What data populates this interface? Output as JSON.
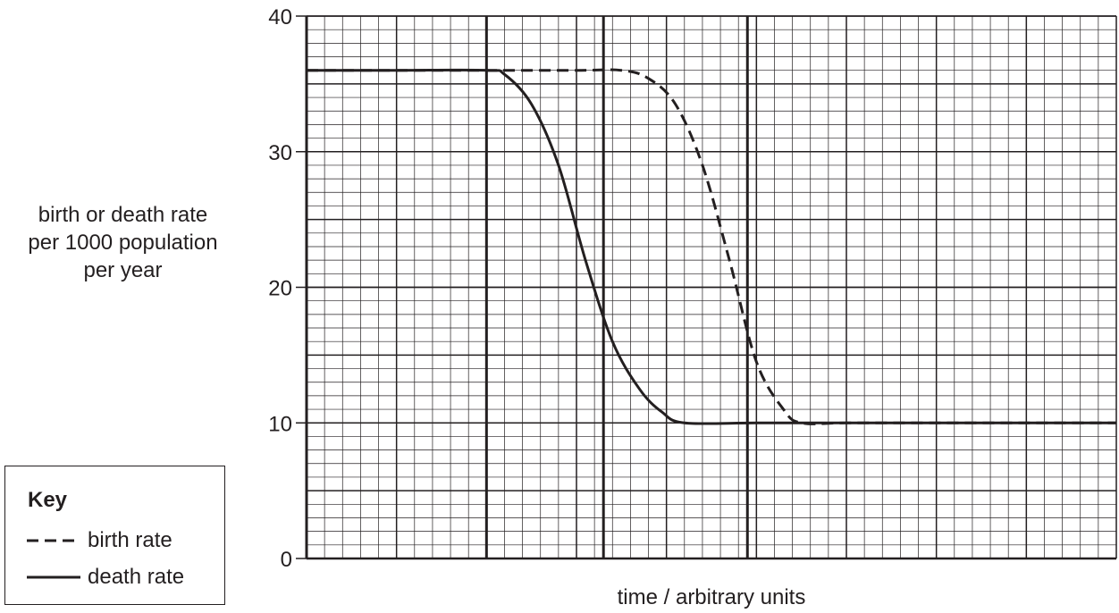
{
  "chart_data": {
    "type": "line",
    "title": "",
    "xlabel": "time / arbitrary units",
    "ylabel_lines": [
      "birth or death rate",
      "per 1000 population",
      "per year"
    ],
    "ylim": [
      0,
      40
    ],
    "xlim": [
      0,
      9
    ],
    "y_ticks": [
      "0",
      "10",
      "20",
      "30",
      "40"
    ],
    "grid": true,
    "series": [
      {
        "name": "birth rate",
        "style": "dashed",
        "points": [
          [
            0,
            36
          ],
          [
            1,
            36
          ],
          [
            2,
            36
          ],
          [
            3,
            36
          ],
          [
            3.5,
            36
          ],
          [
            3.8,
            35.4
          ],
          [
            4.1,
            33.5
          ],
          [
            4.4,
            29
          ],
          [
            4.7,
            22
          ],
          [
            5,
            14.5
          ],
          [
            5.3,
            11
          ],
          [
            5.5,
            10
          ],
          [
            6,
            10
          ],
          [
            7,
            10
          ],
          [
            8,
            10
          ],
          [
            9,
            10
          ]
        ]
      },
      {
        "name": "death rate",
        "style": "solid",
        "points": [
          [
            0,
            36
          ],
          [
            1,
            36
          ],
          [
            2,
            36
          ],
          [
            2.2,
            35.7
          ],
          [
            2.5,
            33.5
          ],
          [
            2.8,
            29
          ],
          [
            3.1,
            22
          ],
          [
            3.4,
            16
          ],
          [
            3.7,
            12.5
          ],
          [
            3.95,
            10.8
          ],
          [
            4.2,
            10
          ],
          [
            5,
            10
          ],
          [
            6,
            10
          ],
          [
            7,
            10
          ],
          [
            8,
            10
          ],
          [
            9,
            10
          ]
        ]
      }
    ],
    "legend": {
      "title": "Key",
      "placement": "bottom-left, outside plot",
      "entries": [
        {
          "label": "birth rate",
          "style": "dashed"
        },
        {
          "label": "death rate",
          "style": "solid"
        }
      ]
    }
  }
}
